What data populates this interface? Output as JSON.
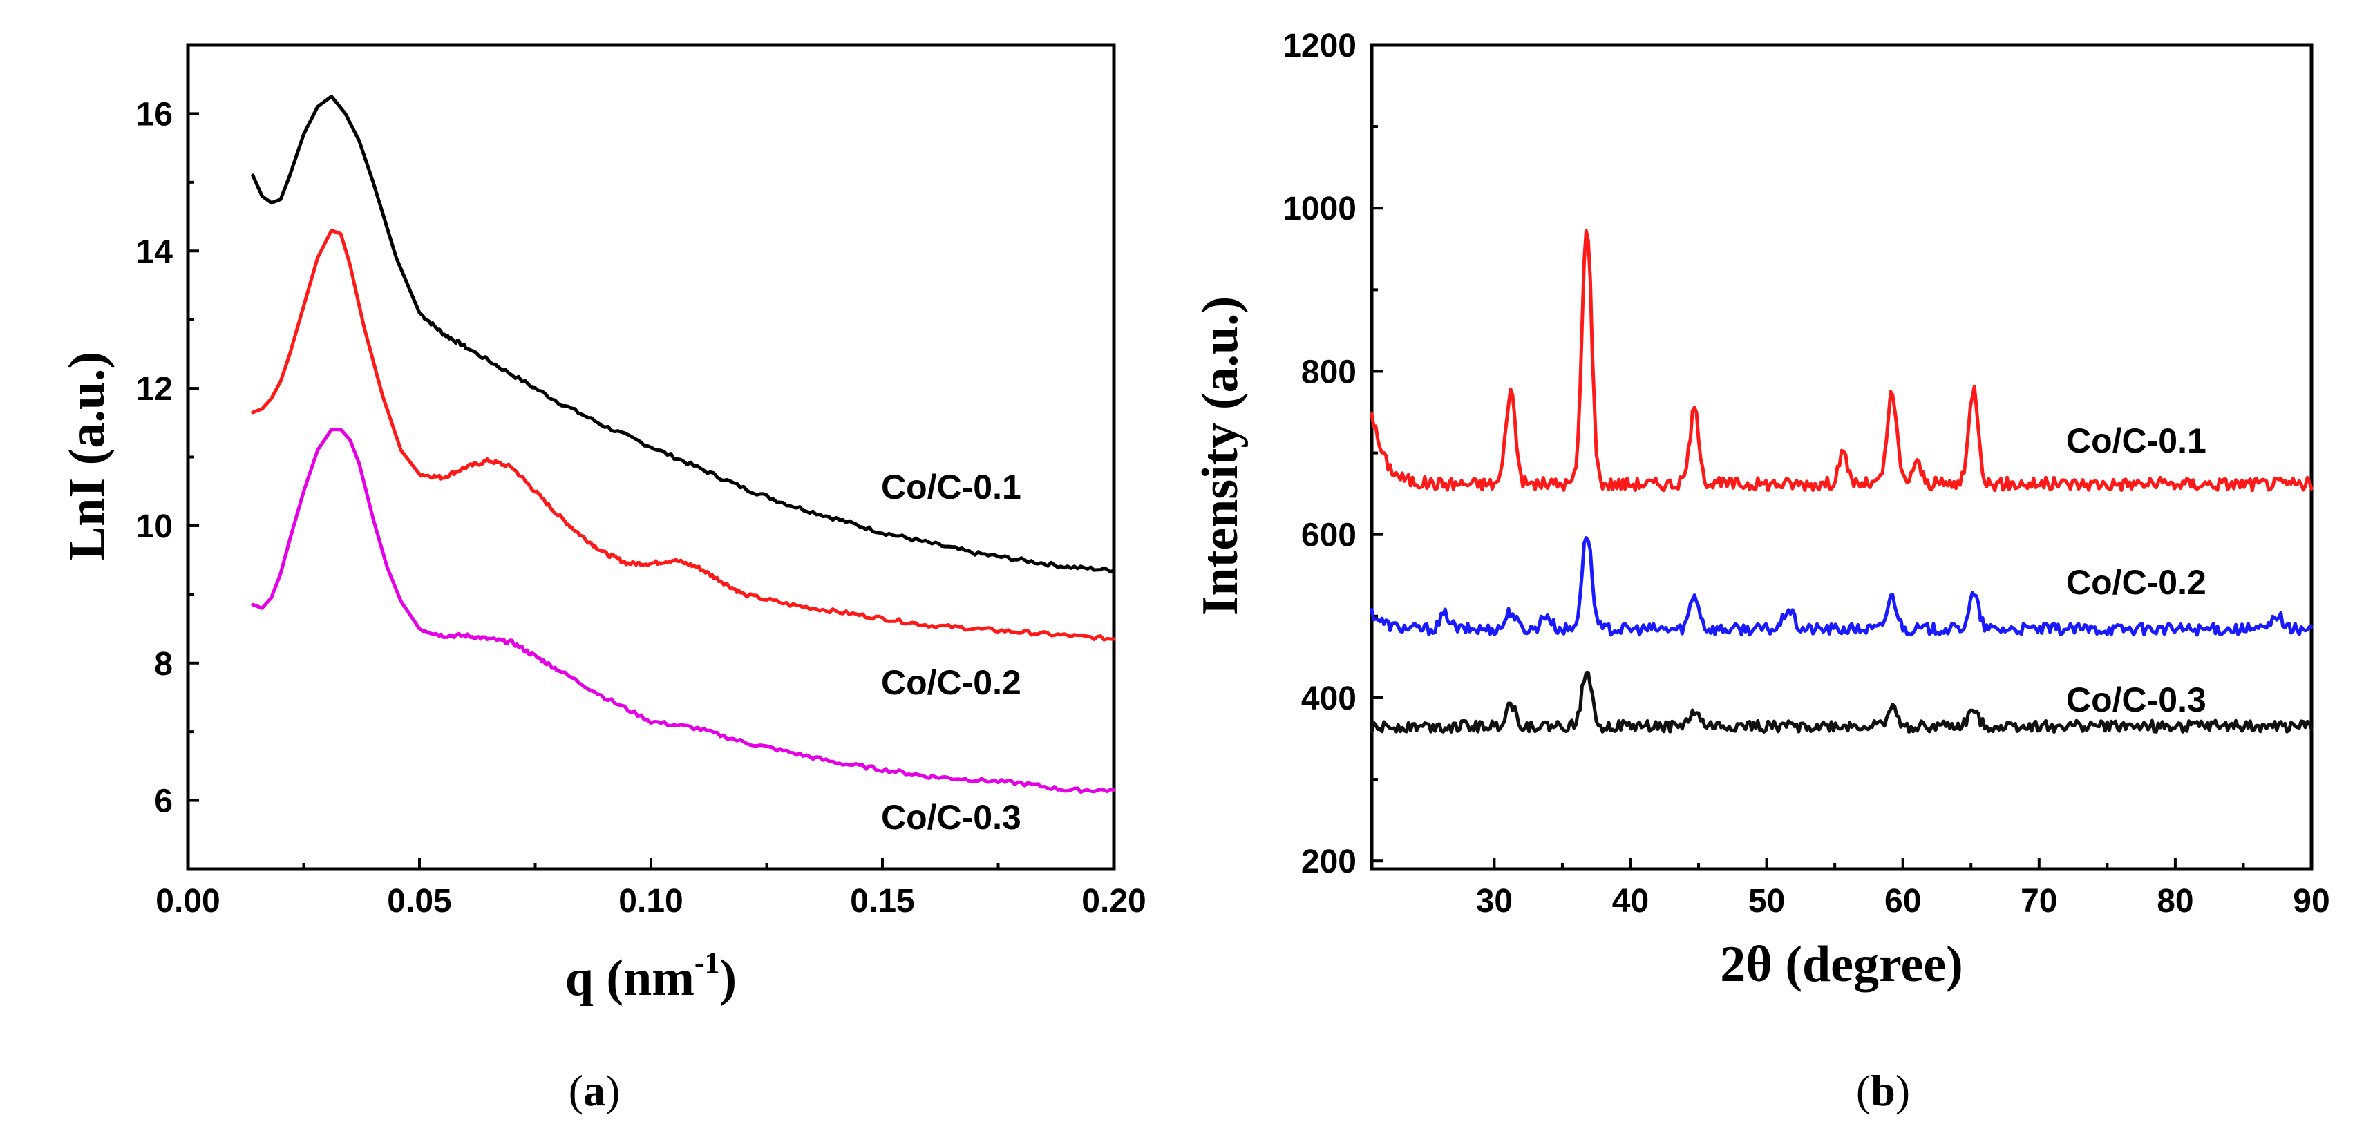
{
  "chart_data": [
    {
      "type": "line",
      "panel": "a",
      "caption_letter": "a",
      "caption_open": "(",
      "caption_close": ")",
      "xlabel_main": "q (nm",
      "xlabel_sup": "-1",
      "xlabel_end": ")",
      "ylabel": "LnI (a.u.)",
      "xlim": [
        0.0,
        0.2
      ],
      "ylim": [
        5,
        17
      ],
      "xticks": [
        0.0,
        0.05,
        0.1,
        0.15,
        0.2
      ],
      "xtick_labels": [
        "0.00",
        "0.05",
        "0.10",
        "0.15",
        "0.20"
      ],
      "yticks": [
        6,
        8,
        10,
        12,
        14,
        16
      ],
      "ytick_labels": [
        "6",
        "8",
        "10",
        "12",
        "14",
        "16"
      ],
      "series": [
        {
          "name": "Co/C-0.1",
          "color": "#000000",
          "x": [
            0.014,
            0.016,
            0.018,
            0.02,
            0.022,
            0.025,
            0.028,
            0.031,
            0.034,
            0.037,
            0.04,
            0.045,
            0.05,
            0.055,
            0.06,
            0.07,
            0.08,
            0.09,
            0.1,
            0.11,
            0.12,
            0.13,
            0.14,
            0.15,
            0.16,
            0.17,
            0.18,
            0.19,
            0.2
          ],
          "y": [
            15.1,
            14.8,
            14.7,
            14.75,
            15.1,
            15.7,
            16.1,
            16.25,
            16.0,
            15.6,
            15.0,
            13.9,
            13.1,
            12.8,
            12.6,
            12.2,
            11.8,
            11.45,
            11.15,
            10.85,
            10.55,
            10.3,
            10.1,
            9.9,
            9.75,
            9.6,
            9.5,
            9.4,
            9.35
          ]
        },
        {
          "name": "Co/C-0.2",
          "color": "#ff1a1a",
          "x": [
            0.014,
            0.016,
            0.018,
            0.02,
            0.022,
            0.025,
            0.028,
            0.031,
            0.033,
            0.035,
            0.038,
            0.042,
            0.046,
            0.05,
            0.055,
            0.06,
            0.065,
            0.07,
            0.075,
            0.08,
            0.085,
            0.09,
            0.095,
            0.1,
            0.105,
            0.11,
            0.115,
            0.12,
            0.13,
            0.14,
            0.15,
            0.16,
            0.17,
            0.18,
            0.19,
            0.2
          ],
          "y": [
            11.65,
            11.7,
            11.85,
            12.1,
            12.5,
            13.2,
            13.9,
            14.3,
            14.25,
            13.8,
            12.9,
            11.9,
            11.1,
            10.75,
            10.7,
            10.85,
            10.95,
            10.85,
            10.5,
            10.15,
            9.85,
            9.6,
            9.45,
            9.45,
            9.5,
            9.4,
            9.2,
            9.0,
            8.85,
            8.75,
            8.65,
            8.55,
            8.5,
            8.45,
            8.4,
            8.35
          ]
        },
        {
          "name": "Co/C-0.3",
          "color": "#e600e6",
          "x": [
            0.014,
            0.016,
            0.018,
            0.02,
            0.022,
            0.025,
            0.028,
            0.031,
            0.033,
            0.035,
            0.037,
            0.04,
            0.043,
            0.046,
            0.05,
            0.055,
            0.06,
            0.065,
            0.07,
            0.075,
            0.08,
            0.09,
            0.1,
            0.11,
            0.12,
            0.13,
            0.14,
            0.15,
            0.16,
            0.17,
            0.18,
            0.19,
            0.2
          ],
          "y": [
            8.85,
            8.8,
            8.95,
            9.3,
            9.8,
            10.5,
            11.1,
            11.4,
            11.4,
            11.25,
            10.9,
            10.1,
            9.4,
            8.9,
            8.5,
            8.4,
            8.4,
            8.35,
            8.3,
            8.1,
            7.9,
            7.5,
            7.15,
            7.05,
            6.85,
            6.7,
            6.55,
            6.45,
            6.35,
            6.3,
            6.25,
            6.15,
            6.15
          ]
        }
      ]
    },
    {
      "type": "line",
      "panel": "b",
      "caption_letter": "b",
      "caption_open": "(",
      "caption_close": ")",
      "xlabel": "2θ (degree)",
      "ylabel": "Intensity (a.u.)",
      "xlim": [
        21,
        90
      ],
      "ylim": [
        190,
        1200
      ],
      "xticks": [
        30,
        40,
        50,
        60,
        70,
        80,
        90
      ],
      "xtick_labels": [
        "30",
        "40",
        "50",
        "60",
        "70",
        "80",
        "90"
      ],
      "yticks": [
        200,
        400,
        600,
        800,
        1000,
        1200
      ],
      "ytick_labels": [
        "200",
        "400",
        "600",
        "800",
        "1000",
        "1200"
      ],
      "series": [
        {
          "name": "Co/C-0.1",
          "color": "#ff1a1a",
          "baseline": 662,
          "noise": 8,
          "peaks": [
            [
              31.2,
              115
            ],
            [
              36.8,
              318
            ],
            [
              44.7,
              90
            ],
            [
              55.6,
              35
            ],
            [
              59.2,
              110
            ],
            [
              61.0,
              25
            ],
            [
              65.2,
              118
            ]
          ],
          "start_value": 752
        },
        {
          "name": "Co/C-0.2",
          "color": "#1a1aff",
          "baseline": 484,
          "noise": 7,
          "peaks": [
            [
              26.4,
              18
            ],
            [
              31.2,
              22
            ],
            [
              33.8,
              18
            ],
            [
              36.8,
              118
            ],
            [
              44.7,
              42
            ],
            [
              51.6,
              25
            ],
            [
              59.2,
              40
            ],
            [
              65.2,
              42
            ],
            [
              87.5,
              18
            ]
          ],
          "start_value": 505
        },
        {
          "name": "Co/C-0.3",
          "color": "#111111",
          "baseline": 365,
          "noise": 7,
          "peaks": [
            [
              31.2,
              28
            ],
            [
              36.8,
              72
            ],
            [
              44.7,
              18
            ],
            [
              59.2,
              22
            ],
            [
              65.2,
              20
            ]
          ],
          "start_value": 362
        }
      ]
    }
  ]
}
